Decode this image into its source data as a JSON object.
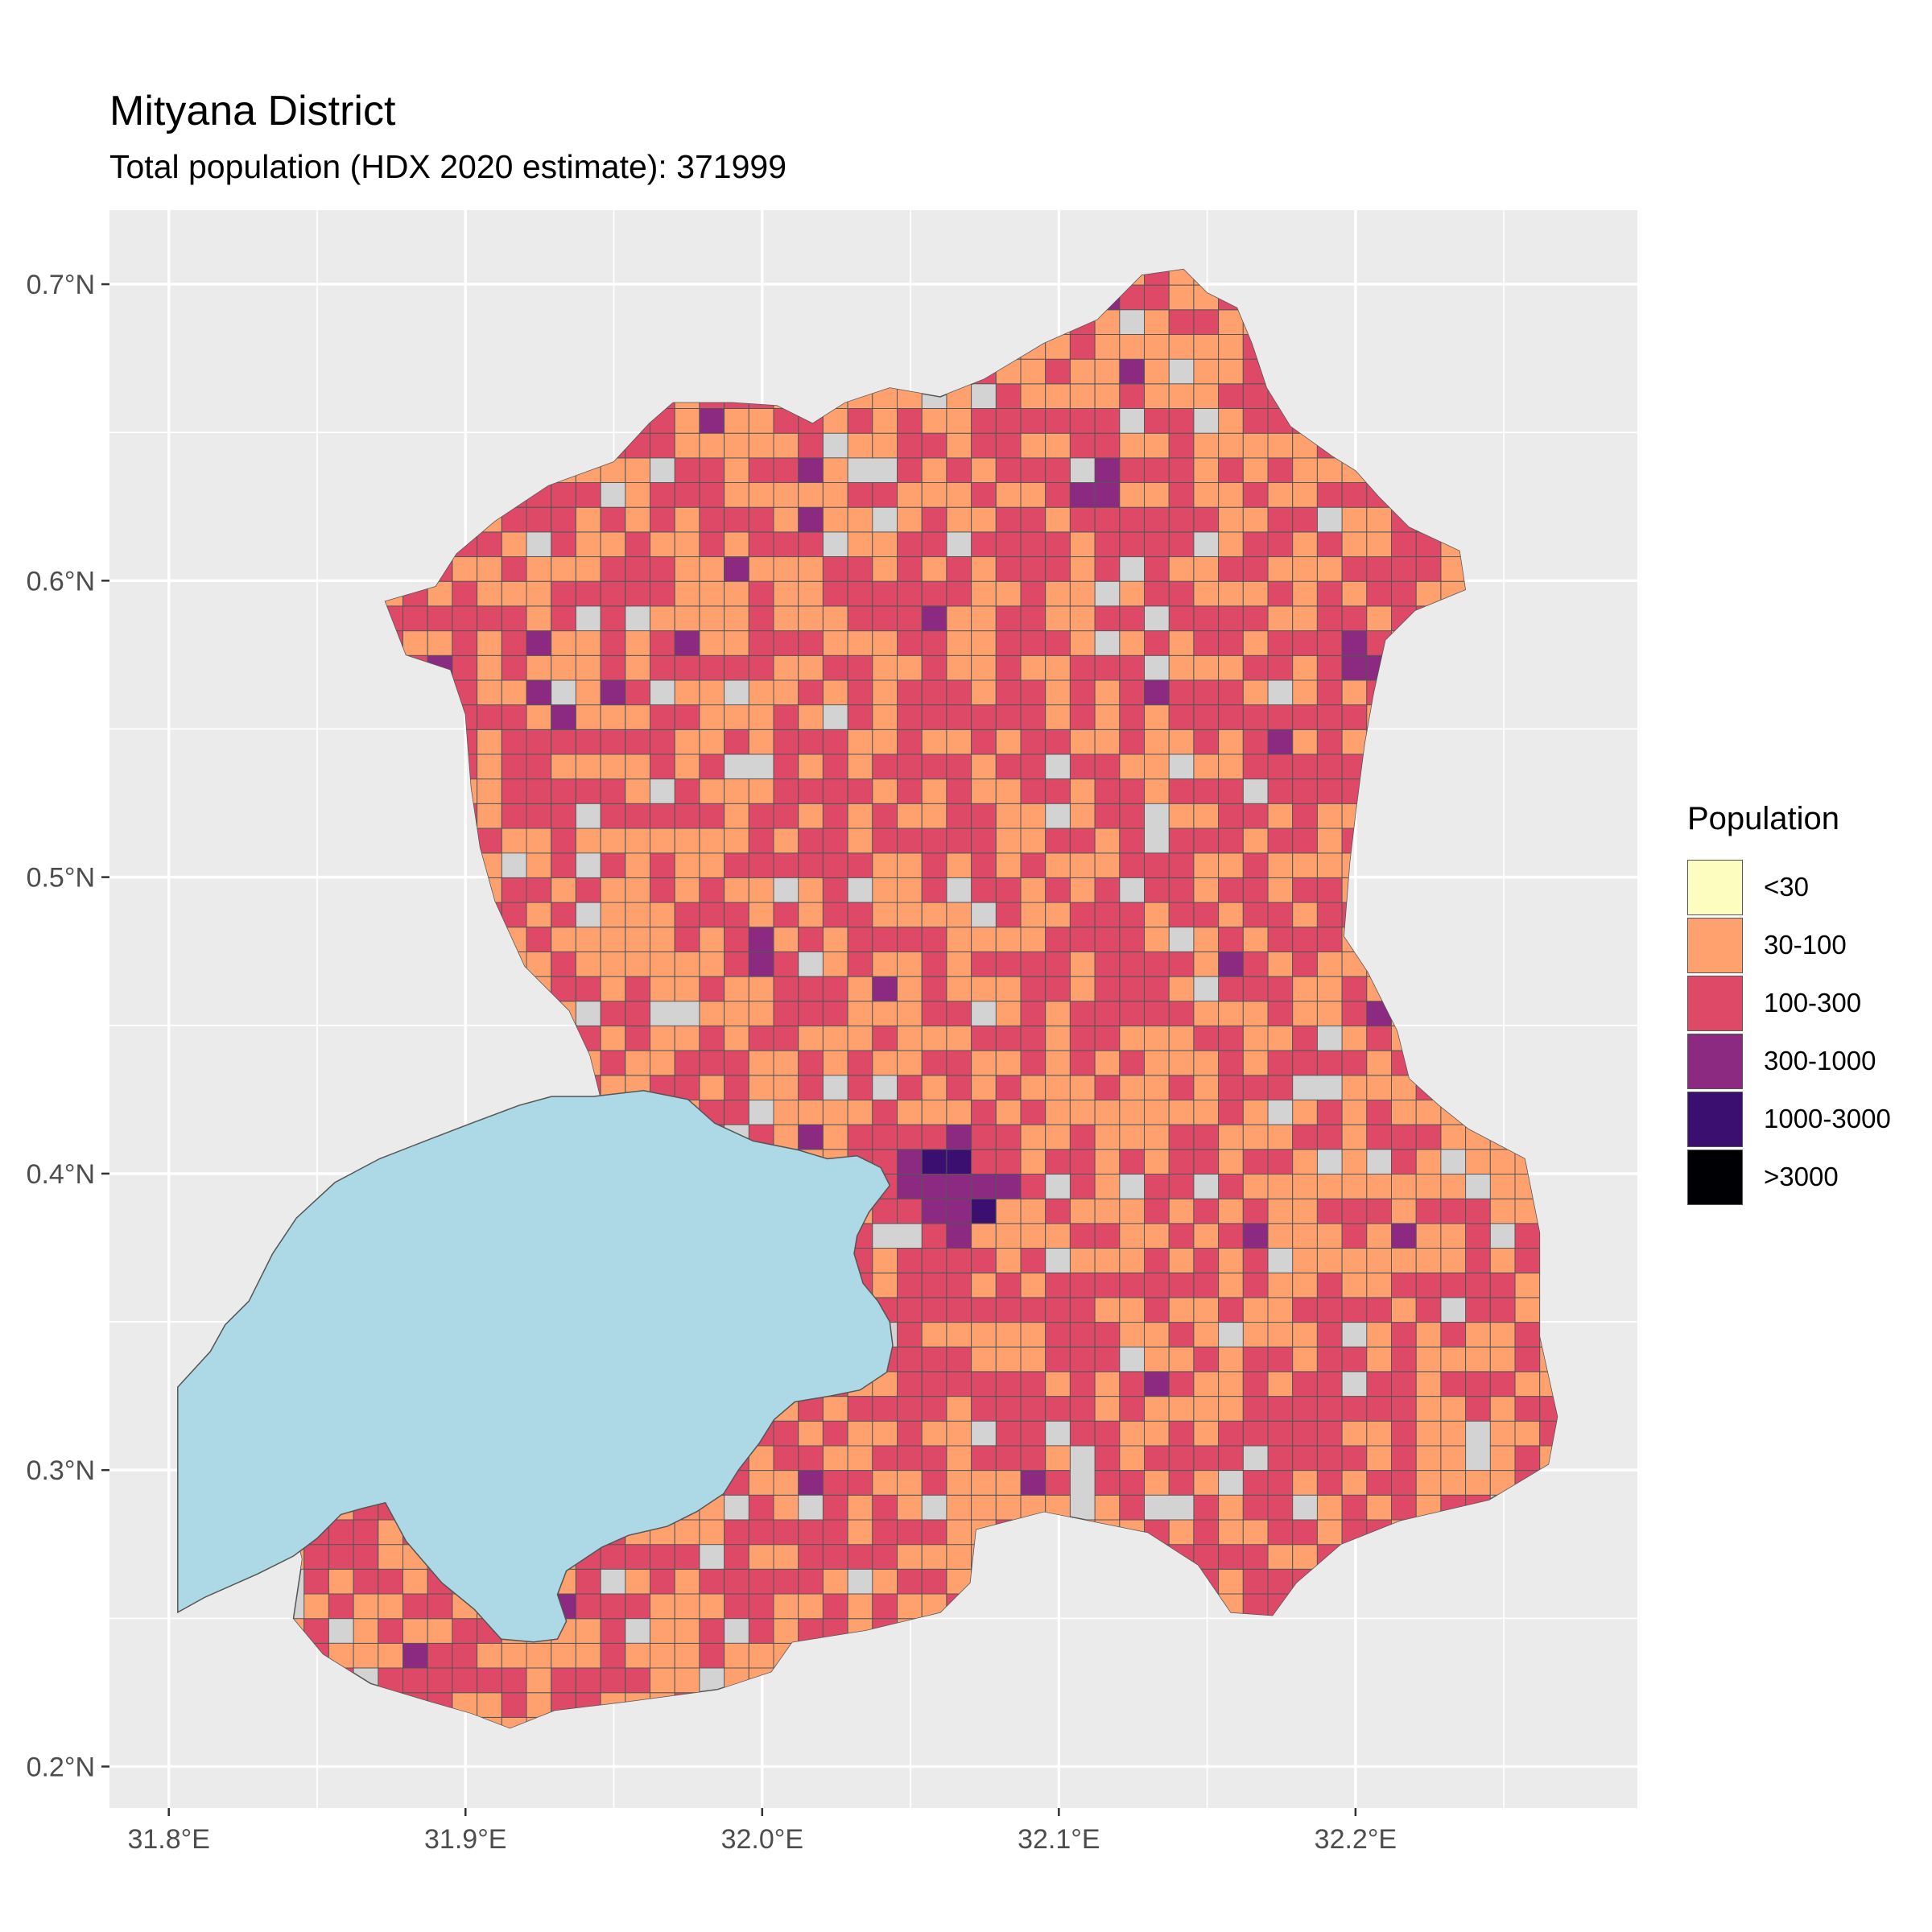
{
  "title": "Mityana District",
  "subtitle": "Total population (HDX 2020 estimate): 371999",
  "map": {
    "lon_range": [
      31.78,
      32.295
    ],
    "lat_range": [
      0.186,
      0.725
    ],
    "x_ticks": [
      {
        "value": 31.8,
        "label": "31.8°E"
      },
      {
        "value": 31.9,
        "label": "31.9°E"
      },
      {
        "value": 32.0,
        "label": "32.0°E"
      },
      {
        "value": 32.1,
        "label": "32.1°E"
      },
      {
        "value": 32.2,
        "label": "32.2°E"
      }
    ],
    "y_ticks": [
      {
        "value": 0.2,
        "label": "0.2°N"
      },
      {
        "value": 0.3,
        "label": "0.3°N"
      },
      {
        "value": 0.4,
        "label": "0.4°N"
      },
      {
        "value": 0.5,
        "label": "0.5°N"
      },
      {
        "value": 0.6,
        "label": "0.6°N"
      },
      {
        "value": 0.7,
        "label": "0.7°N"
      }
    ],
    "panel_background": "#ebebeb",
    "grid_color": "#ffffff",
    "district_fill": "#d3d3d3",
    "lake_fill": "#add8e6",
    "cell_size_deg": 0.00833,
    "district_outline": [
      [
        31.915,
        0.213
      ],
      [
        31.93,
        0.219
      ],
      [
        31.955,
        0.222
      ],
      [
        31.985,
        0.226
      ],
      [
        32.003,
        0.232
      ],
      [
        32.01,
        0.242
      ],
      [
        32.035,
        0.246
      ],
      [
        32.06,
        0.252
      ],
      [
        32.07,
        0.262
      ],
      [
        32.072,
        0.28
      ],
      [
        32.095,
        0.286
      ],
      [
        32.13,
        0.279
      ],
      [
        32.147,
        0.268
      ],
      [
        32.158,
        0.252
      ],
      [
        32.172,
        0.251
      ],
      [
        32.18,
        0.262
      ],
      [
        32.195,
        0.275
      ],
      [
        32.215,
        0.283
      ],
      [
        32.245,
        0.29
      ],
      [
        32.265,
        0.302
      ],
      [
        32.268,
        0.318
      ],
      [
        32.262,
        0.345
      ],
      [
        32.262,
        0.38
      ],
      [
        32.257,
        0.405
      ],
      [
        32.238,
        0.415
      ],
      [
        32.228,
        0.423
      ],
      [
        32.218,
        0.432
      ],
      [
        32.214,
        0.448
      ],
      [
        32.204,
        0.468
      ],
      [
        32.196,
        0.48
      ],
      [
        32.198,
        0.505
      ],
      [
        32.2,
        0.522
      ],
      [
        32.203,
        0.545
      ],
      [
        32.206,
        0.562
      ],
      [
        32.21,
        0.58
      ],
      [
        32.22,
        0.59
      ],
      [
        32.237,
        0.597
      ],
      [
        32.235,
        0.61
      ],
      [
        32.218,
        0.618
      ],
      [
        32.208,
        0.628
      ],
      [
        32.2,
        0.637
      ],
      [
        32.192,
        0.642
      ],
      [
        32.178,
        0.652
      ],
      [
        32.17,
        0.665
      ],
      [
        32.165,
        0.68
      ],
      [
        32.16,
        0.692
      ],
      [
        32.15,
        0.697
      ],
      [
        32.142,
        0.705
      ],
      [
        32.128,
        0.703
      ],
      [
        32.113,
        0.688
      ],
      [
        32.095,
        0.68
      ],
      [
        32.075,
        0.668
      ],
      [
        32.06,
        0.662
      ],
      [
        32.043,
        0.665
      ],
      [
        32.028,
        0.66
      ],
      [
        32.017,
        0.653
      ],
      [
        32.005,
        0.659
      ],
      [
        31.99,
        0.66
      ],
      [
        31.97,
        0.66
      ],
      [
        31.962,
        0.653
      ],
      [
        31.95,
        0.64
      ],
      [
        31.928,
        0.632
      ],
      [
        31.91,
        0.62
      ],
      [
        31.897,
        0.609
      ],
      [
        31.89,
        0.598
      ],
      [
        31.873,
        0.593
      ],
      [
        31.88,
        0.575
      ],
      [
        31.895,
        0.57
      ],
      [
        31.9,
        0.555
      ],
      [
        31.902,
        0.53
      ],
      [
        31.905,
        0.51
      ],
      [
        31.91,
        0.492
      ],
      [
        31.92,
        0.47
      ],
      [
        31.935,
        0.455
      ],
      [
        31.942,
        0.44
      ],
      [
        31.947,
        0.42
      ],
      [
        31.94,
        0.4
      ],
      [
        31.925,
        0.385
      ],
      [
        31.905,
        0.372
      ],
      [
        31.885,
        0.36
      ],
      [
        31.87,
        0.345
      ],
      [
        31.857,
        0.33
      ],
      [
        31.845,
        0.31
      ],
      [
        31.84,
        0.29
      ],
      [
        31.845,
        0.27
      ],
      [
        31.842,
        0.25
      ],
      [
        31.852,
        0.238
      ],
      [
        31.868,
        0.228
      ],
      [
        31.888,
        0.222
      ],
      [
        31.902,
        0.218
      ]
    ],
    "lake_outline": [
      [
        31.803,
        0.328
      ],
      [
        31.814,
        0.34
      ],
      [
        31.819,
        0.349
      ],
      [
        31.827,
        0.357
      ],
      [
        31.835,
        0.373
      ],
      [
        31.843,
        0.385
      ],
      [
        31.856,
        0.397
      ],
      [
        31.871,
        0.405
      ],
      [
        31.889,
        0.412
      ],
      [
        31.902,
        0.417
      ],
      [
        31.918,
        0.423
      ],
      [
        31.929,
        0.426
      ],
      [
        31.943,
        0.426
      ],
      [
        31.96,
        0.428
      ],
      [
        31.975,
        0.425
      ],
      [
        31.984,
        0.417
      ],
      [
        31.997,
        0.411
      ],
      [
        32.012,
        0.408
      ],
      [
        32.022,
        0.405
      ],
      [
        32.032,
        0.406
      ],
      [
        32.04,
        0.402
      ],
      [
        32.043,
        0.396
      ],
      [
        32.036,
        0.387
      ],
      [
        32.032,
        0.379
      ],
      [
        32.031,
        0.373
      ],
      [
        32.034,
        0.363
      ],
      [
        32.039,
        0.357
      ],
      [
        32.043,
        0.35
      ],
      [
        32.044,
        0.342
      ],
      [
        32.042,
        0.333
      ],
      [
        32.033,
        0.327
      ],
      [
        32.023,
        0.325
      ],
      [
        32.011,
        0.323
      ],
      [
        32.004,
        0.317
      ],
      [
        31.999,
        0.309
      ],
      [
        31.992,
        0.3
      ],
      [
        31.987,
        0.292
      ],
      [
        31.978,
        0.286
      ],
      [
        31.968,
        0.281
      ],
      [
        31.955,
        0.278
      ],
      [
        31.946,
        0.274
      ],
      [
        31.934,
        0.266
      ],
      [
        31.931,
        0.258
      ],
      [
        31.934,
        0.249
      ],
      [
        31.931,
        0.243
      ],
      [
        31.923,
        0.242
      ],
      [
        31.912,
        0.243
      ],
      [
        31.903,
        0.253
      ],
      [
        31.892,
        0.262
      ],
      [
        31.88,
        0.276
      ],
      [
        31.873,
        0.289
      ],
      [
        31.865,
        0.287
      ],
      [
        31.858,
        0.285
      ],
      [
        31.85,
        0.277
      ],
      [
        31.842,
        0.271
      ],
      [
        31.83,
        0.265
      ],
      [
        31.812,
        0.257
      ],
      [
        31.803,
        0.252
      ]
    ]
  },
  "legend": {
    "title": "Population",
    "items": [
      {
        "label": "<30",
        "color": "#fcfdbf"
      },
      {
        "label": "30-100",
        "color": "#fea16e"
      },
      {
        "label": "100-300",
        "color": "#de4968"
      },
      {
        "label": "300-1000",
        "color": "#8c2981"
      },
      {
        "label": "1000-3000",
        "color": "#3b0f70"
      },
      {
        "label": ">3000",
        "color": "#000004"
      }
    ]
  }
}
